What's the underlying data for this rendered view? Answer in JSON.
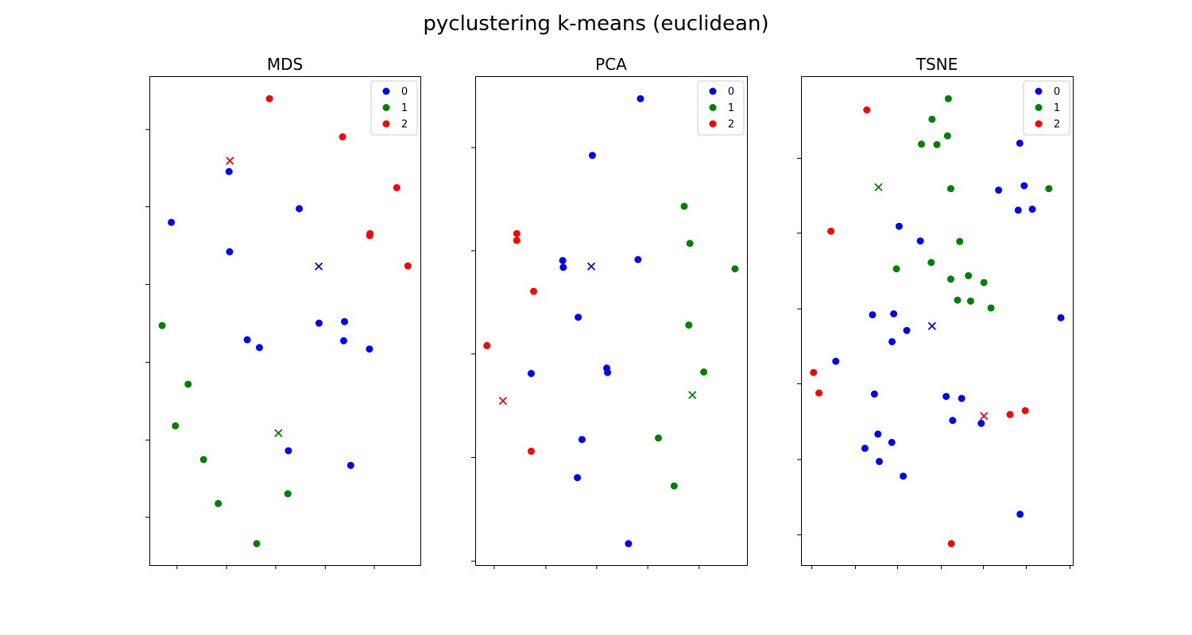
{
  "figure": {
    "title": "pyclustering k-means (euclidean)"
  },
  "chart_data": [
    {
      "type": "scatter",
      "title": "MDS",
      "xlim": [
        0,
        100
      ],
      "ylim": [
        0,
        100
      ],
      "xticks": [
        10.2,
        28.5,
        46.6,
        64.9,
        83.0
      ],
      "yticks": [
        9.8,
        25.6,
        41.5,
        57.4,
        73.3,
        89.1
      ],
      "tick_labels_visible": false,
      "legend": {
        "position": "upper right"
      },
      "series": [
        {
          "name": "0",
          "color": "#0000ff",
          "points": [
            [
              29.4,
              80.5
            ],
            [
              8.1,
              70.1
            ],
            [
              55.3,
              72.9
            ],
            [
              29.6,
              64.1
            ],
            [
              62.6,
              49.5
            ],
            [
              72.0,
              49.8
            ],
            [
              36.1,
              46.1
            ],
            [
              40.6,
              44.5
            ],
            [
              81.2,
              44.2
            ],
            [
              71.7,
              45.9
            ],
            [
              51.3,
              23.4
            ],
            [
              74.3,
              20.4
            ]
          ],
          "centroid": [
            62.5,
            61.1
          ]
        },
        {
          "name": "1",
          "color": "#008000",
          "points": [
            [
              4.7,
              49.0
            ],
            [
              14.3,
              37.0
            ],
            [
              9.6,
              28.5
            ],
            [
              20.0,
              21.6
            ],
            [
              25.4,
              12.6
            ],
            [
              51.1,
              14.6
            ],
            [
              39.6,
              4.4
            ]
          ],
          "centroid": [
            47.6,
            27.0
          ]
        },
        {
          "name": "2",
          "color": "#ff0000",
          "points": [
            [
              44.3,
              95.4
            ],
            [
              71.3,
              87.6
            ],
            [
              91.3,
              77.2
            ],
            [
              81.3,
              67.4
            ],
            [
              81.4,
              67.8
            ],
            [
              95.4,
              61.2
            ]
          ],
          "centroid": [
            29.7,
            82.7
          ]
        }
      ]
    },
    {
      "type": "scatter",
      "title": "PCA",
      "xlim": [
        0,
        100
      ],
      "ylim": [
        0,
        100
      ],
      "xticks": [
        7.0,
        26.0,
        44.7,
        63.5,
        82.4
      ],
      "yticks": [
        0.8,
        22.0,
        43.2,
        64.3,
        85.4
      ],
      "tick_labels_visible": false,
      "legend": {
        "position": "upper right"
      },
      "series": [
        {
          "name": "0",
          "color": "#0000ff",
          "points": [
            [
              60.8,
              95.4
            ],
            [
              43.1,
              83.8
            ],
            [
              32.2,
              62.3
            ],
            [
              32.4,
              60.9
            ],
            [
              59.9,
              62.5
            ],
            [
              37.9,
              50.7
            ],
            [
              48.4,
              40.3
            ],
            [
              48.7,
              39.4
            ],
            [
              20.6,
              39.2
            ],
            [
              39.3,
              25.7
            ],
            [
              37.6,
              17.9
            ],
            [
              56.4,
              4.4
            ]
          ],
          "centroid": [
            42.7,
            61.1
          ]
        },
        {
          "name": "1",
          "color": "#008000",
          "points": [
            [
              76.9,
              73.4
            ],
            [
              79.0,
              65.8
            ],
            [
              95.6,
              60.6
            ],
            [
              78.6,
              49.1
            ],
            [
              84.1,
              39.5
            ],
            [
              67.4,
              26.0
            ],
            [
              73.2,
              16.2
            ]
          ],
          "centroid": [
            79.9,
            34.8
          ]
        },
        {
          "name": "2",
          "color": "#ff0000",
          "points": [
            [
              15.3,
              67.8
            ],
            [
              15.3,
              66.4
            ],
            [
              21.5,
              56.0
            ],
            [
              4.3,
              44.9
            ],
            [
              20.6,
              23.3
            ]
          ],
          "centroid": [
            10.2,
            33.6
          ]
        }
      ]
    },
    {
      "type": "scatter",
      "title": "TSNE",
      "xlim": [
        0,
        100
      ],
      "ylim": [
        0,
        100
      ],
      "xticks": [
        4.0,
        20.0,
        35.5,
        51.6,
        67.1,
        82.9,
        99.0
      ],
      "yticks": [
        6.2,
        21.6,
        37.1,
        52.4,
        67.9,
        83.2
      ],
      "tick_labels_visible": false,
      "legend": {
        "position": "upper right"
      },
      "series": [
        {
          "name": "0",
          "color": "#0000ff",
          "points": [
            [
              80.5,
              86.3
            ],
            [
              72.7,
              76.7
            ],
            [
              82.1,
              77.6
            ],
            [
              79.9,
              72.6
            ],
            [
              85.1,
              72.8
            ],
            [
              36.1,
              69.3
            ],
            [
              43.9,
              66.3
            ],
            [
              26.3,
              51.2
            ],
            [
              34.1,
              51.4
            ],
            [
              38.9,
              48.0
            ],
            [
              33.5,
              45.7
            ],
            [
              95.6,
              50.6
            ],
            [
              12.8,
              41.7
            ],
            [
              27.0,
              35.0
            ],
            [
              53.4,
              34.5
            ],
            [
              59.1,
              34.1
            ],
            [
              55.8,
              29.6
            ],
            [
              66.3,
              29.0
            ],
            [
              28.3,
              26.8
            ],
            [
              33.4,
              25.1
            ],
            [
              23.5,
              23.9
            ],
            [
              28.8,
              21.2
            ],
            [
              37.6,
              18.2
            ],
            [
              80.6,
              10.4
            ]
          ],
          "centroid": [
            48.2,
            48.9
          ]
        },
        {
          "name": "1",
          "color": "#008000",
          "points": [
            [
              54.2,
              95.4
            ],
            [
              48.2,
              91.2
            ],
            [
              44.3,
              86.1
            ],
            [
              50.0,
              86.0
            ],
            [
              53.9,
              87.8
            ],
            [
              55.1,
              77.0
            ],
            [
              58.4,
              66.2
            ],
            [
              47.9,
              61.9
            ],
            [
              35.1,
              60.6
            ],
            [
              55.1,
              58.5
            ],
            [
              61.6,
              59.2
            ],
            [
              67.3,
              57.8
            ],
            [
              57.6,
              54.2
            ],
            [
              62.4,
              54.0
            ],
            [
              69.9,
              52.6
            ],
            [
              91.2,
              77.0
            ]
          ],
          "centroid": [
            28.5,
            77.3
          ]
        },
        {
          "name": "2",
          "color": "#ff0000",
          "points": [
            [
              24.2,
              93.1
            ],
            [
              11.0,
              68.3
            ],
            [
              4.6,
              39.4
            ],
            [
              6.6,
              35.2
            ],
            [
              82.5,
              31.6
            ],
            [
              76.9,
              30.8
            ],
            [
              55.3,
              4.4
            ]
          ],
          "centroid": [
            67.3,
            30.5
          ]
        }
      ]
    }
  ]
}
